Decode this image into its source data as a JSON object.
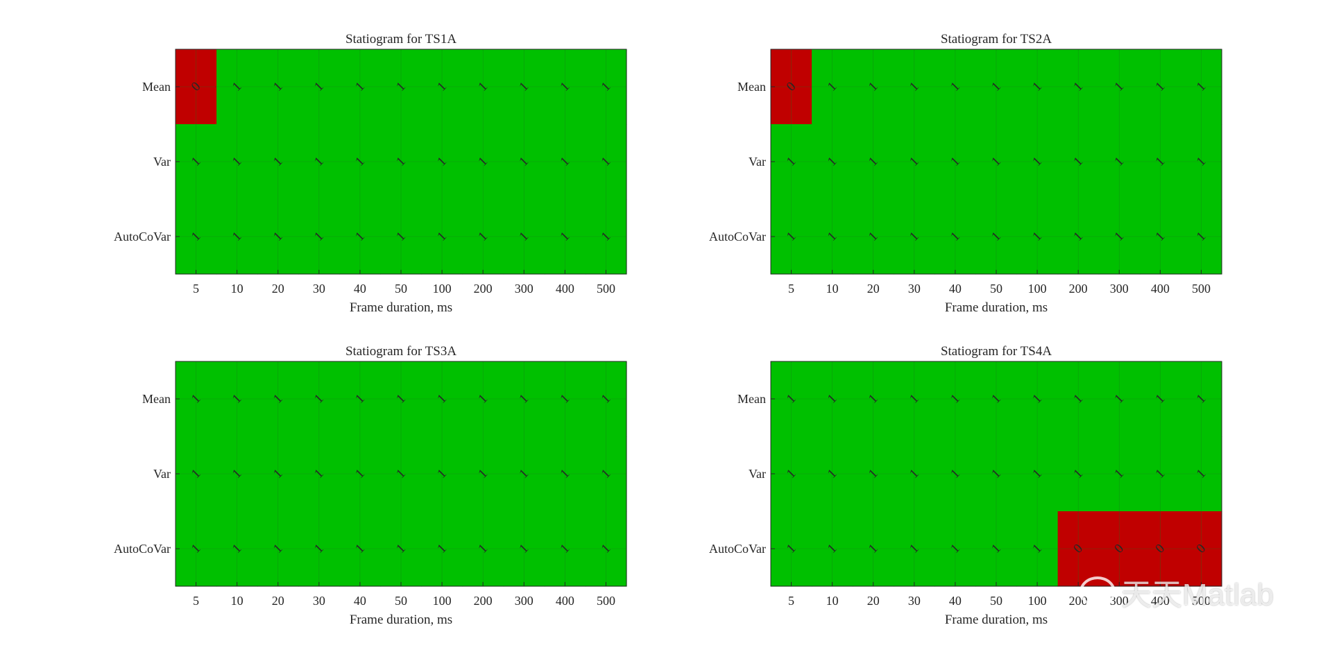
{
  "figure": {
    "background": "#ffffff"
  },
  "colors": {
    "pass": "#00c000",
    "fail": "#c00000",
    "text": "#262626",
    "grid": "#1a7a1a"
  },
  "watermark": {
    "text": "天天Matlab",
    "icon": "wechat-icon"
  },
  "chart_data": [
    {
      "type": "heatmap",
      "title": "Statiogram for TS1A",
      "xlabel": "Frame duration, ms",
      "ylabel": "",
      "x": [
        "5",
        "10",
        "20",
        "30",
        "40",
        "50",
        "100",
        "200",
        "300",
        "400",
        "500"
      ],
      "y": [
        "Mean",
        "Var",
        "AutoCoVar"
      ],
      "values": [
        [
          0,
          1,
          1,
          1,
          1,
          1,
          1,
          1,
          1,
          1,
          1
        ],
        [
          1,
          1,
          1,
          1,
          1,
          1,
          1,
          1,
          1,
          1,
          1
        ],
        [
          1,
          1,
          1,
          1,
          1,
          1,
          1,
          1,
          1,
          1,
          1
        ]
      ],
      "grid": true
    },
    {
      "type": "heatmap",
      "title": "Statiogram for TS2A",
      "xlabel": "Frame duration, ms",
      "ylabel": "",
      "x": [
        "5",
        "10",
        "20",
        "30",
        "40",
        "50",
        "100",
        "200",
        "300",
        "400",
        "500"
      ],
      "y": [
        "Mean",
        "Var",
        "AutoCoVar"
      ],
      "values": [
        [
          0,
          1,
          1,
          1,
          1,
          1,
          1,
          1,
          1,
          1,
          1
        ],
        [
          1,
          1,
          1,
          1,
          1,
          1,
          1,
          1,
          1,
          1,
          1
        ],
        [
          1,
          1,
          1,
          1,
          1,
          1,
          1,
          1,
          1,
          1,
          1
        ]
      ],
      "grid": true
    },
    {
      "type": "heatmap",
      "title": "Statiogram for TS3A",
      "xlabel": "Frame duration, ms",
      "ylabel": "",
      "x": [
        "5",
        "10",
        "20",
        "30",
        "40",
        "50",
        "100",
        "200",
        "300",
        "400",
        "500"
      ],
      "y": [
        "Mean",
        "Var",
        "AutoCoVar"
      ],
      "values": [
        [
          1,
          1,
          1,
          1,
          1,
          1,
          1,
          1,
          1,
          1,
          1
        ],
        [
          1,
          1,
          1,
          1,
          1,
          1,
          1,
          1,
          1,
          1,
          1
        ],
        [
          1,
          1,
          1,
          1,
          1,
          1,
          1,
          1,
          1,
          1,
          1
        ]
      ],
      "grid": true
    },
    {
      "type": "heatmap",
      "title": "Statiogram for TS4A",
      "xlabel": "Frame duration, ms",
      "ylabel": "",
      "x": [
        "5",
        "10",
        "20",
        "30",
        "40",
        "50",
        "100",
        "200",
        "300",
        "400",
        "500"
      ],
      "y": [
        "Mean",
        "Var",
        "AutoCoVar"
      ],
      "values": [
        [
          1,
          1,
          1,
          1,
          1,
          1,
          1,
          1,
          1,
          1,
          1
        ],
        [
          1,
          1,
          1,
          1,
          1,
          1,
          1,
          1,
          1,
          1,
          1
        ],
        [
          1,
          1,
          1,
          1,
          1,
          1,
          1,
          0,
          0,
          0,
          0
        ]
      ],
      "grid": true
    }
  ]
}
